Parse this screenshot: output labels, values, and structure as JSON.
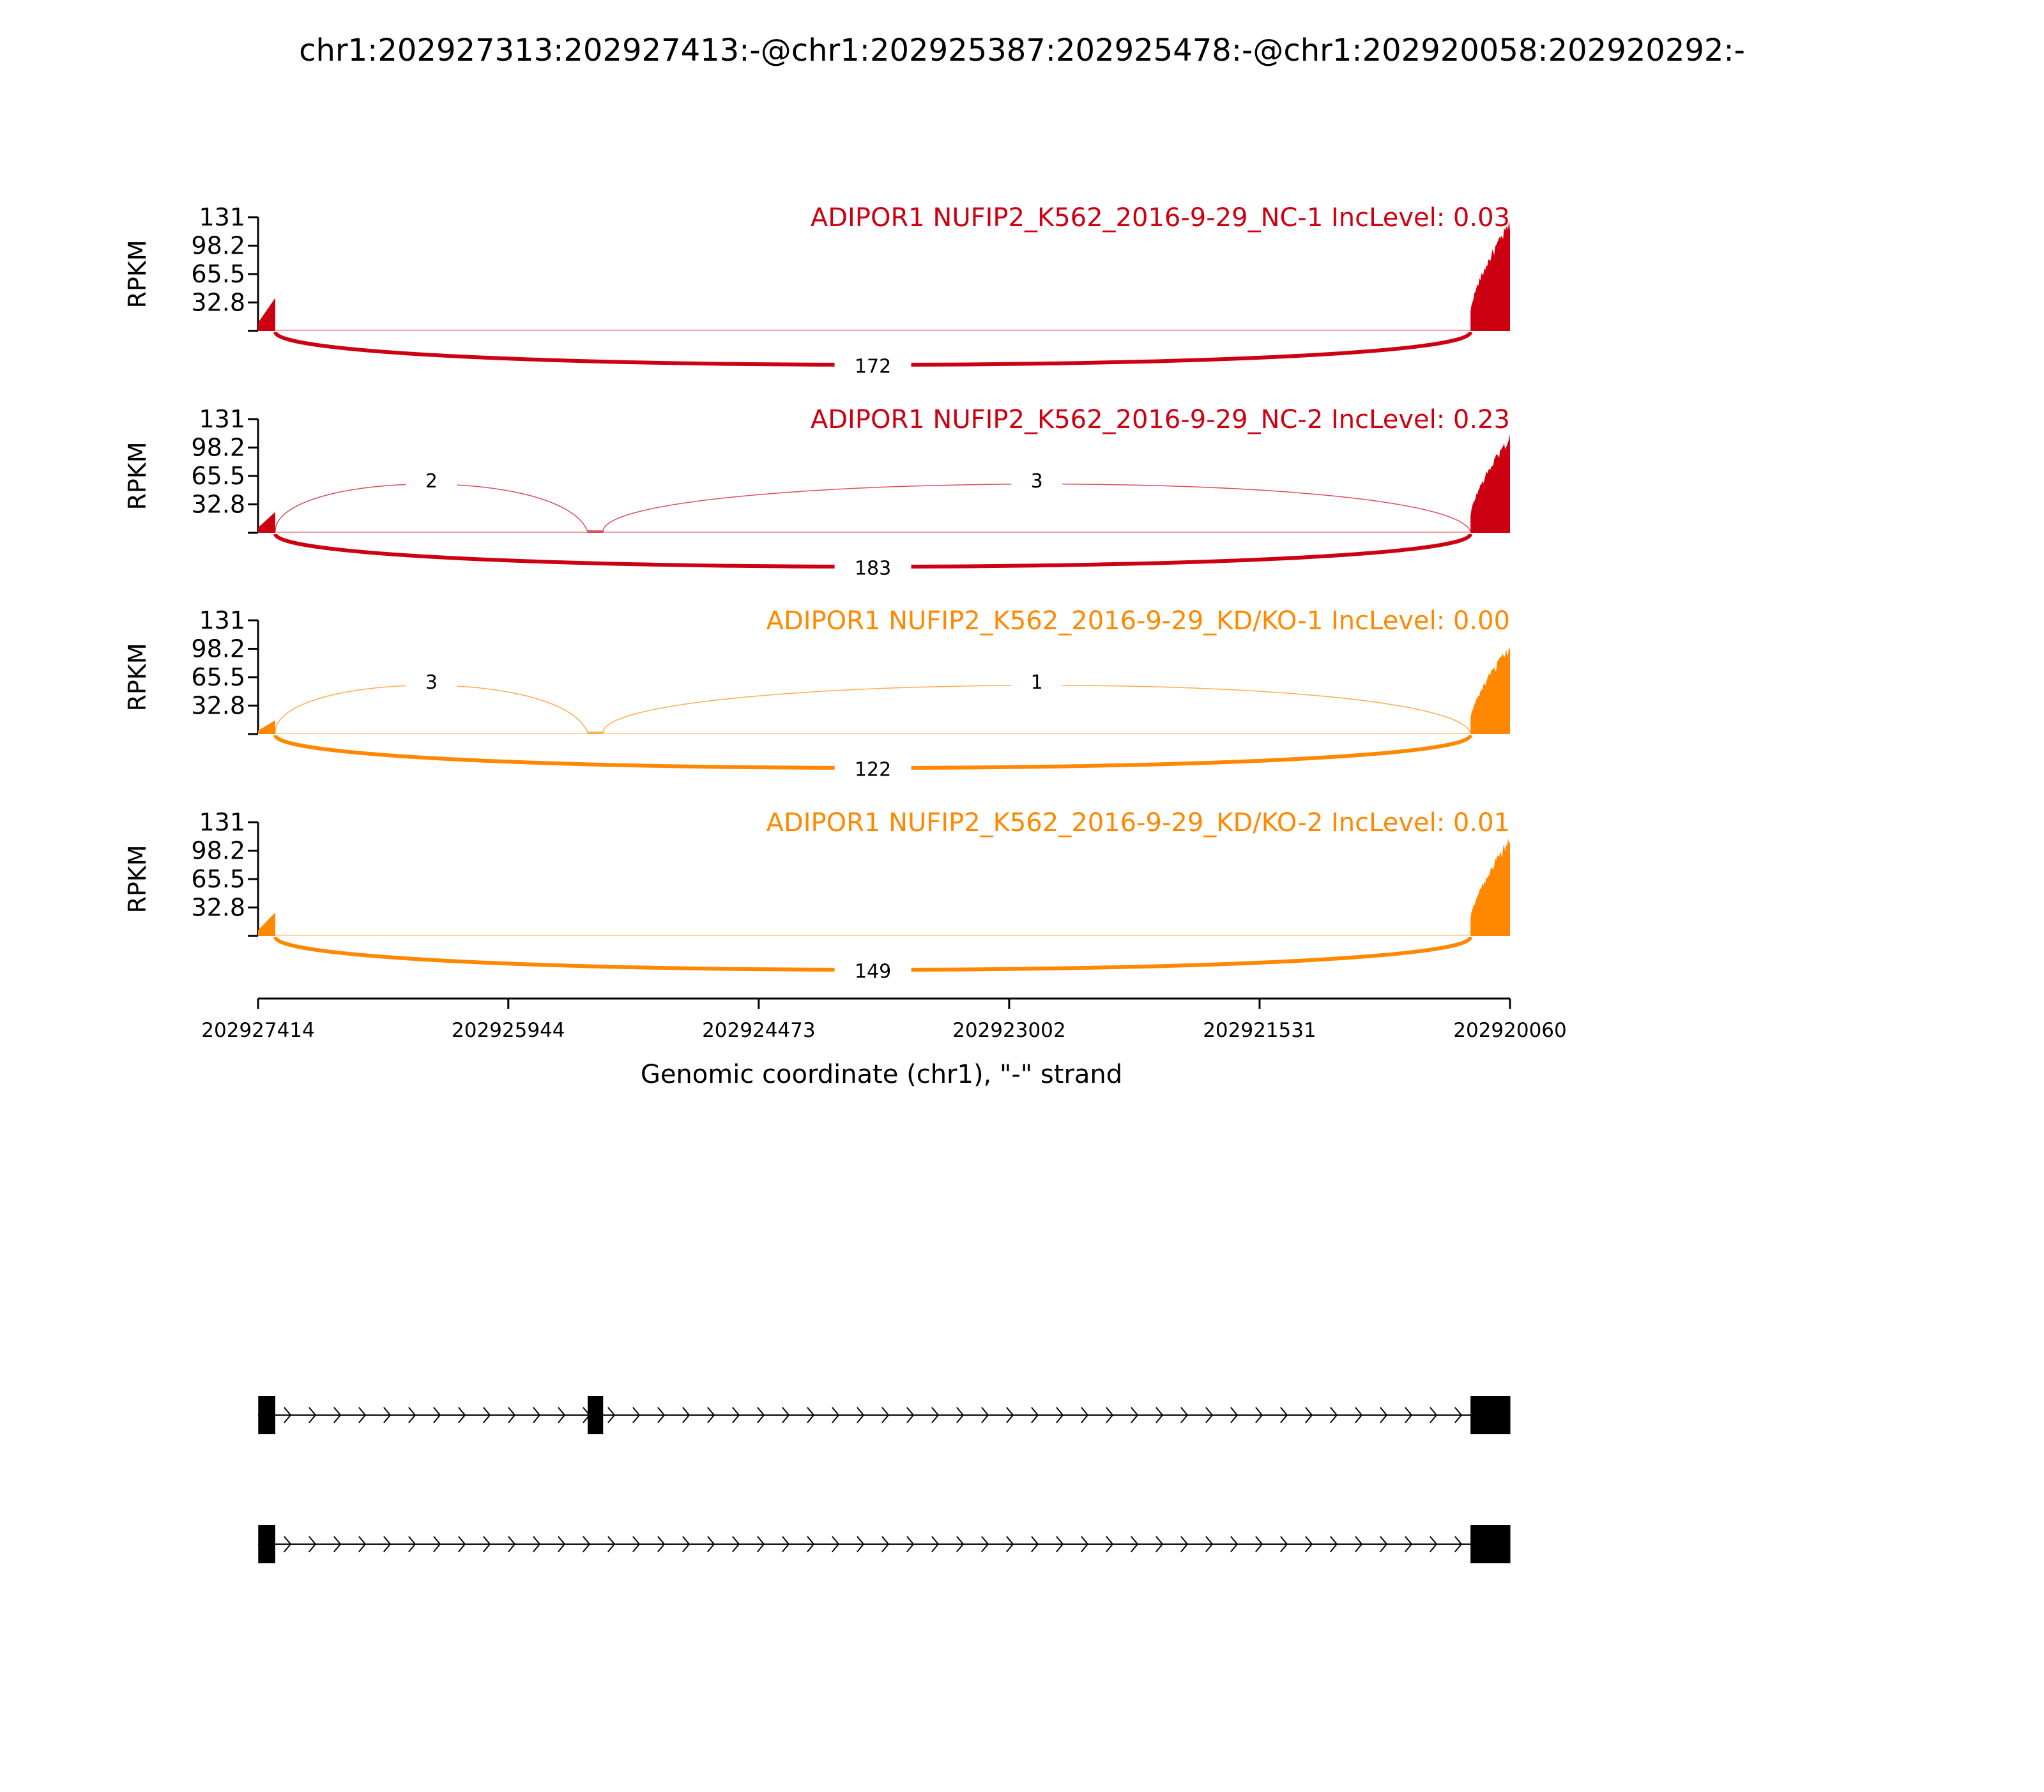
{
  "chart_data": {
    "type": "sashimi",
    "title": "chr1:202927313:202927413:-@chr1:202925387:202925478:-@chr1:202920058:202920292:-",
    "xlabel": "Genomic coordinate (chr1), \"-\" strand",
    "ylabel": "RPKM",
    "yticks": [
      "131",
      "98.2",
      "65.5",
      "32.8"
    ],
    "ylim": [
      0,
      131
    ],
    "xrange": [
      202927414,
      202920060
    ],
    "xticks": [
      {
        "label": "202927414",
        "value": 202927414
      },
      {
        "label": "202925944",
        "value": 202925944
      },
      {
        "label": "202924473",
        "value": 202924473
      },
      {
        "label": "202923002",
        "value": 202923002
      },
      {
        "label": "202921531",
        "value": 202921531
      },
      {
        "label": "202920060",
        "value": 202920060
      }
    ],
    "exons": {
      "upstream": [
        202927413,
        202927313
      ],
      "target": [
        202925478,
        202925387
      ],
      "downstream": [
        202920292,
        202920058
      ]
    },
    "tracks": [
      {
        "label": "ADIPOR1 NUFIP2_K562_2016-9-29_NC-1 IncLevel: 0.03",
        "color": "#cc0011",
        "exon1_peak": 38,
        "exon3_peak": 128,
        "junctions": [
          {
            "from": 202927313,
            "to": 202920292,
            "count": "172",
            "side": "below"
          }
        ]
      },
      {
        "label": "ADIPOR1 NUFIP2_K562_2016-9-29_NC-2 IncLevel: 0.23",
        "color": "#cc0011",
        "exon1_peak": 24,
        "exon3_peak": 114,
        "junctions": [
          {
            "from": 202927313,
            "to": 202925478,
            "count": "2",
            "side": "above"
          },
          {
            "from": 202925387,
            "to": 202920292,
            "count": "3",
            "side": "above"
          },
          {
            "from": 202927313,
            "to": 202920292,
            "count": "183",
            "side": "below"
          }
        ]
      },
      {
        "label": "ADIPOR1 NUFIP2_K562_2016-9-29_KD/KO-1 IncLevel: 0.00",
        "color": "#ff8800",
        "exon1_peak": 16,
        "exon3_peak": 103,
        "junctions": [
          {
            "from": 202927313,
            "to": 202925478,
            "count": "3",
            "side": "above"
          },
          {
            "from": 202925387,
            "to": 202920292,
            "count": "1",
            "side": "above"
          },
          {
            "from": 202927313,
            "to": 202920292,
            "count": "122",
            "side": "below"
          }
        ]
      },
      {
        "label": "ADIPOR1 NUFIP2_K562_2016-9-29_KD/KO-2 IncLevel: 0.01",
        "color": "#ff8800",
        "exon1_peak": 27,
        "exon3_peak": 114,
        "junctions": [
          {
            "from": 202927313,
            "to": 202920292,
            "count": "149",
            "side": "below"
          }
        ]
      }
    ],
    "isoforms": [
      {
        "exons": [
          "upstream",
          "target",
          "downstream"
        ]
      },
      {
        "exons": [
          "upstream",
          "downstream"
        ]
      }
    ]
  }
}
